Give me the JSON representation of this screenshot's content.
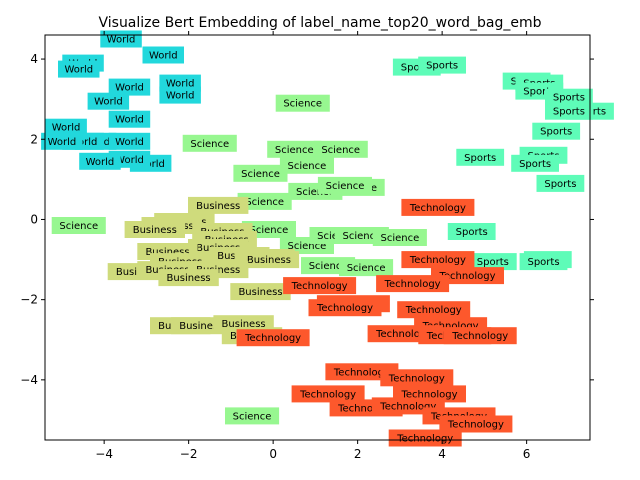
{
  "chart_data": {
    "type": "scatter",
    "title": "Visualize Bert Embedding of label_name_top20_word_bag_emb",
    "xlabel": "",
    "ylabel": "",
    "xlim": [
      -5.4,
      7.5
    ],
    "ylim": [
      -5.5,
      4.6
    ],
    "xticks": [
      -4,
      -2,
      0,
      2,
      4,
      6
    ],
    "yticks": [
      -4,
      -2,
      0,
      2,
      4
    ],
    "grid": false,
    "colors": {
      "World": "#22d8dc",
      "Sports": "#5efcb8",
      "Science": "#97f790",
      "Business": "#cfdb7c",
      "Technology": "#fd582c"
    },
    "series": [
      {
        "name": "World",
        "points": [
          [
            -3.6,
            4.5
          ],
          [
            -2.6,
            4.1
          ],
          [
            -4.5,
            3.9
          ],
          [
            -4.6,
            3.75
          ],
          [
            -3.4,
            3.3
          ],
          [
            -2.2,
            3.4
          ],
          [
            -2.2,
            3.1
          ],
          [
            -3.9,
            2.95
          ],
          [
            -3.4,
            2.5
          ],
          [
            -4.9,
            2.3
          ],
          [
            -4.2,
            1.95
          ],
          [
            -4.5,
            1.95
          ],
          [
            -5.0,
            1.95
          ],
          [
            -3.4,
            1.95
          ],
          [
            -2.9,
            1.4
          ],
          [
            -3.4,
            1.5
          ],
          [
            -4.1,
            1.45
          ]
        ]
      },
      {
        "name": "Sports",
        "points": [
          [
            3.4,
            3.8
          ],
          [
            4.0,
            3.85
          ],
          [
            6.0,
            3.45
          ],
          [
            6.3,
            3.4
          ],
          [
            6.3,
            3.2
          ],
          [
            7.0,
            3.05
          ],
          [
            7.5,
            2.7
          ],
          [
            7.0,
            2.7
          ],
          [
            6.7,
            2.2
          ],
          [
            4.9,
            1.55
          ],
          [
            6.4,
            1.6
          ],
          [
            6.2,
            1.4
          ],
          [
            6.8,
            0.9
          ],
          [
            4.7,
            -0.3
          ],
          [
            5.2,
            -1.05
          ],
          [
            6.5,
            -1.0
          ],
          [
            6.4,
            -1.05
          ]
        ]
      },
      {
        "name": "Science",
        "points": [
          [
            0.7,
            2.9
          ],
          [
            -1.5,
            1.9
          ],
          [
            0.5,
            1.75
          ],
          [
            1.6,
            1.75
          ],
          [
            0.8,
            1.35
          ],
          [
            -0.3,
            1.15
          ],
          [
            1.0,
            0.7
          ],
          [
            2.0,
            0.8
          ],
          [
            1.7,
            0.85
          ],
          [
            -0.2,
            0.45
          ],
          [
            -4.6,
            -0.15
          ],
          [
            -0.1,
            -0.25
          ],
          [
            0.8,
            -0.65
          ],
          [
            1.5,
            -0.4
          ],
          [
            2.1,
            -0.4
          ],
          [
            3.0,
            -0.45
          ],
          [
            1.3,
            -1.15
          ],
          [
            2.2,
            -1.2
          ],
          [
            -0.5,
            -4.9
          ]
        ]
      },
      {
        "name": "Business",
        "points": [
          [
            -1.3,
            0.35
          ],
          [
            -2.1,
            -0.05
          ],
          [
            -2.4,
            -0.15
          ],
          [
            -2.8,
            -0.25
          ],
          [
            -1.2,
            -0.3
          ],
          [
            -1.1,
            -0.5
          ],
          [
            -1.3,
            -0.7
          ],
          [
            -2.5,
            -0.8
          ],
          [
            -2.2,
            -1.05
          ],
          [
            -0.8,
            -0.9
          ],
          [
            -0.2,
            -0.95
          ],
          [
            -0.1,
            -1.0
          ],
          [
            -3.2,
            -1.3
          ],
          [
            -2.5,
            -1.25
          ],
          [
            -1.3,
            -1.25
          ],
          [
            -2.0,
            -1.45
          ],
          [
            -0.3,
            -1.8
          ],
          [
            -2.2,
            -2.65
          ],
          [
            -1.7,
            -2.65
          ],
          [
            -0.7,
            -2.6
          ],
          [
            -0.5,
            -2.9
          ]
        ]
      },
      {
        "name": "Technology",
        "points": [
          [
            3.9,
            0.3
          ],
          [
            1.1,
            -1.65
          ],
          [
            1.9,
            -2.1
          ],
          [
            3.8,
            -2.25
          ],
          [
            3.9,
            -1.0
          ],
          [
            4.6,
            -1.4
          ],
          [
            3.3,
            -1.6
          ],
          [
            1.7,
            -2.2
          ],
          [
            4.2,
            -2.65
          ],
          [
            3.1,
            -2.85
          ],
          [
            4.3,
            -2.9
          ],
          [
            4.9,
            -2.9
          ],
          [
            0.0,
            -2.95
          ],
          [
            2.1,
            -3.8
          ],
          [
            3.4,
            -3.95
          ],
          [
            1.3,
            -4.35
          ],
          [
            3.7,
            -4.35
          ],
          [
            2.2,
            -4.7
          ],
          [
            3.2,
            -4.65
          ],
          [
            4.4,
            -4.9
          ],
          [
            4.8,
            -5.1
          ],
          [
            3.6,
            -5.45
          ]
        ]
      }
    ]
  }
}
